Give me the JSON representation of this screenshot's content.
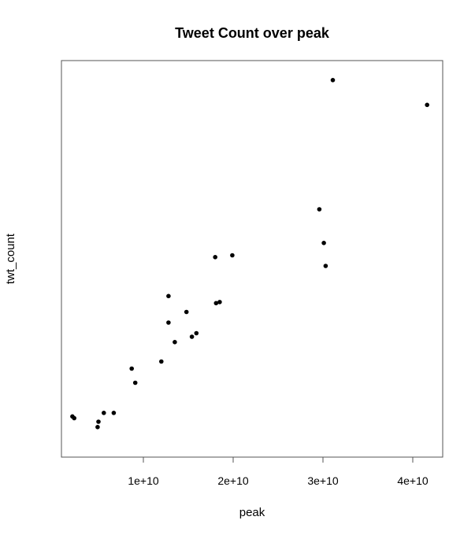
{
  "chart_data": {
    "type": "scatter",
    "title": "Tweet Count over peak",
    "xlabel": "peak",
    "ylabel": "twt_count",
    "xlim": [
      5000000000,
      43000000000
    ],
    "ylim": [
      0,
      100
    ],
    "grid": false,
    "x_ticks": [
      {
        "value": 10000000000,
        "label": "1e+10"
      },
      {
        "value": 20000000000,
        "label": "2e+10"
      },
      {
        "value": 30000000000,
        "label": "3e+10"
      },
      {
        "value": 40000000000,
        "label": "4e+10"
      }
    ],
    "series": [
      {
        "points": [
          {
            "x": 2100000000,
            "y": 7.5
          },
          {
            "x": 2300000000,
            "y": 7.0
          },
          {
            "x": 4900000000,
            "y": 4.5
          },
          {
            "x": 5000000000,
            "y": 6.0
          },
          {
            "x": 5600000000,
            "y": 8.5
          },
          {
            "x": 6700000000,
            "y": 8.5
          },
          {
            "x": 8700000000,
            "y": 21.0
          },
          {
            "x": 9100000000,
            "y": 17.0
          },
          {
            "x": 12000000000,
            "y": 23.0
          },
          {
            "x": 12800000000,
            "y": 34.0
          },
          {
            "x": 12800000000,
            "y": 41.5
          },
          {
            "x": 13500000000,
            "y": 28.5
          },
          {
            "x": 14800000000,
            "y": 37.0
          },
          {
            "x": 15400000000,
            "y": 30.0
          },
          {
            "x": 15900000000,
            "y": 31.0
          },
          {
            "x": 18000000000,
            "y": 52.5
          },
          {
            "x": 18100000000,
            "y": 39.5
          },
          {
            "x": 18500000000,
            "y": 39.8
          },
          {
            "x": 19900000000,
            "y": 53.0
          },
          {
            "x": 29600000000,
            "y": 66.0
          },
          {
            "x": 30100000000,
            "y": 56.5
          },
          {
            "x": 30300000000,
            "y": 50.0
          },
          {
            "x": 31100000000,
            "y": 102.5
          },
          {
            "x": 41600000000,
            "y": 95.5
          }
        ]
      }
    ]
  }
}
